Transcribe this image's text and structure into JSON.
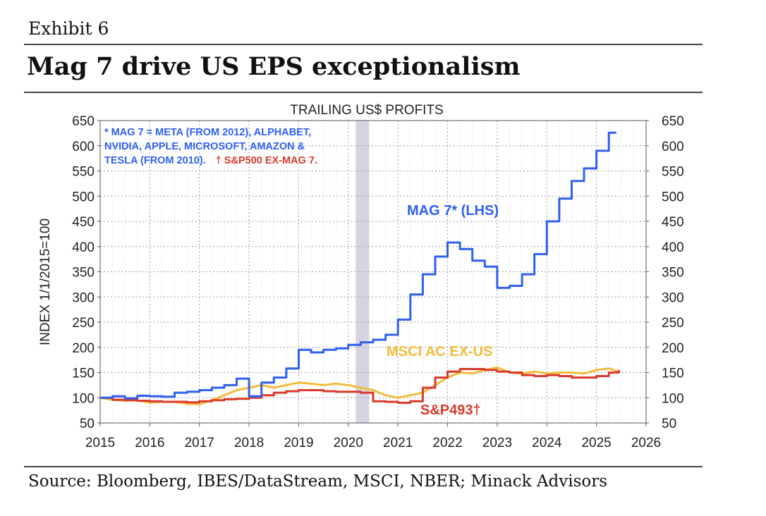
{
  "header": {
    "exhibit": "Exhibit 6",
    "title": "Mag 7 drive US EPS exceptionalism"
  },
  "footer": {
    "source": "Source: Bloomberg, IBES/DataStream, MSCI, NBER; Minack Advisors"
  },
  "colors": {
    "mag7": "#2f5ff0",
    "msci": "#f2bc3c",
    "sp493": "#d93a2b",
    "recession": "#d6d4e3",
    "grid": "#9a9aa8"
  },
  "chart_data": {
    "type": "line",
    "title": "TRAILING US$ PROFITS",
    "ylabel": "INDEX 1/1/2015=100",
    "xlim": [
      2015,
      2026
    ],
    "ylim": [
      50,
      650
    ],
    "x_ticks": [
      "2015",
      "2016",
      "2017",
      "2018",
      "2019",
      "2020",
      "2021",
      "2022",
      "2023",
      "2024",
      "2025",
      "2026"
    ],
    "y_ticks": [
      "50",
      "100",
      "150",
      "200",
      "250",
      "300",
      "350",
      "400",
      "450",
      "500",
      "550",
      "600",
      "650"
    ],
    "grid": true,
    "secondary_axis": "right, same scale",
    "recession_band": [
      2020.15,
      2020.42
    ],
    "note_line1": "* MAG 7 = META (FROM 2012), ALPHABET,",
    "note_line2": "NVIDIA, APPLE, MICROSOFT, AMAZON &",
    "note_line3": "TESLA (FROM 2010).",
    "note_line3_red": "† S&P500 EX-MAG 7.",
    "series": [
      {
        "name": "MAG 7* (LHS)",
        "step": true,
        "x": [
          2015.0,
          2015.25,
          2015.5,
          2015.75,
          2016.0,
          2016.25,
          2016.5,
          2016.75,
          2017.0,
          2017.25,
          2017.5,
          2017.75,
          2018.0,
          2018.25,
          2018.5,
          2018.75,
          2019.0,
          2019.25,
          2019.5,
          2019.75,
          2020.0,
          2020.25,
          2020.5,
          2020.75,
          2021.0,
          2021.25,
          2021.5,
          2021.75,
          2022.0,
          2022.25,
          2022.5,
          2022.75,
          2023.0,
          2023.25,
          2023.5,
          2023.75,
          2024.0,
          2024.25,
          2024.5,
          2024.75,
          2025.0,
          2025.25,
          2025.4
        ],
        "values": [
          100,
          103,
          99,
          104,
          103,
          102,
          110,
          112,
          115,
          120,
          125,
          138,
          103,
          130,
          140,
          158,
          195,
          190,
          195,
          198,
          205,
          210,
          215,
          225,
          255,
          305,
          345,
          380,
          408,
          395,
          372,
          360,
          318,
          322,
          345,
          385,
          450,
          495,
          530,
          555,
          590,
          626,
          626
        ]
      },
      {
        "name": "MSCI AC EX-US",
        "step": false,
        "x": [
          2015.0,
          2015.25,
          2015.5,
          2015.75,
          2016.0,
          2016.25,
          2016.5,
          2016.75,
          2017.0,
          2017.25,
          2017.5,
          2017.75,
          2018.0,
          2018.25,
          2018.5,
          2018.75,
          2019.0,
          2019.25,
          2019.5,
          2019.75,
          2020.0,
          2020.25,
          2020.5,
          2020.75,
          2021.0,
          2021.25,
          2021.5,
          2021.75,
          2022.0,
          2022.25,
          2022.5,
          2022.75,
          2023.0,
          2023.25,
          2023.5,
          2023.75,
          2024.0,
          2024.25,
          2024.5,
          2024.75,
          2025.0,
          2025.25,
          2025.45
        ],
        "values": [
          100,
          96,
          94,
          95,
          90,
          92,
          92,
          88,
          87,
          95,
          105,
          115,
          120,
          125,
          120,
          125,
          130,
          128,
          125,
          128,
          125,
          120,
          115,
          105,
          100,
          105,
          110,
          125,
          140,
          150,
          148,
          155,
          160,
          150,
          148,
          152,
          148,
          150,
          150,
          148,
          155,
          158,
          152
        ]
      },
      {
        "name": "S&P493†",
        "step": true,
        "x": [
          2015.0,
          2015.25,
          2015.5,
          2015.75,
          2016.0,
          2016.25,
          2016.5,
          2016.75,
          2017.0,
          2017.25,
          2017.5,
          2017.75,
          2018.0,
          2018.25,
          2018.5,
          2018.75,
          2019.0,
          2019.25,
          2019.5,
          2019.75,
          2020.0,
          2020.25,
          2020.5,
          2020.75,
          2021.0,
          2021.25,
          2021.5,
          2021.75,
          2022.0,
          2022.25,
          2022.5,
          2022.75,
          2023.0,
          2023.25,
          2023.5,
          2023.75,
          2024.0,
          2024.25,
          2024.5,
          2024.75,
          2025.0,
          2025.25,
          2025.45
        ],
        "values": [
          100,
          96,
          95,
          94,
          93,
          92,
          92,
          91,
          93,
          95,
          97,
          98,
          100,
          105,
          110,
          113,
          115,
          115,
          113,
          112,
          112,
          110,
          93,
          92,
          90,
          93,
          120,
          140,
          152,
          157,
          157,
          155,
          152,
          150,
          145,
          143,
          145,
          143,
          140,
          140,
          143,
          150,
          155
        ]
      }
    ]
  }
}
